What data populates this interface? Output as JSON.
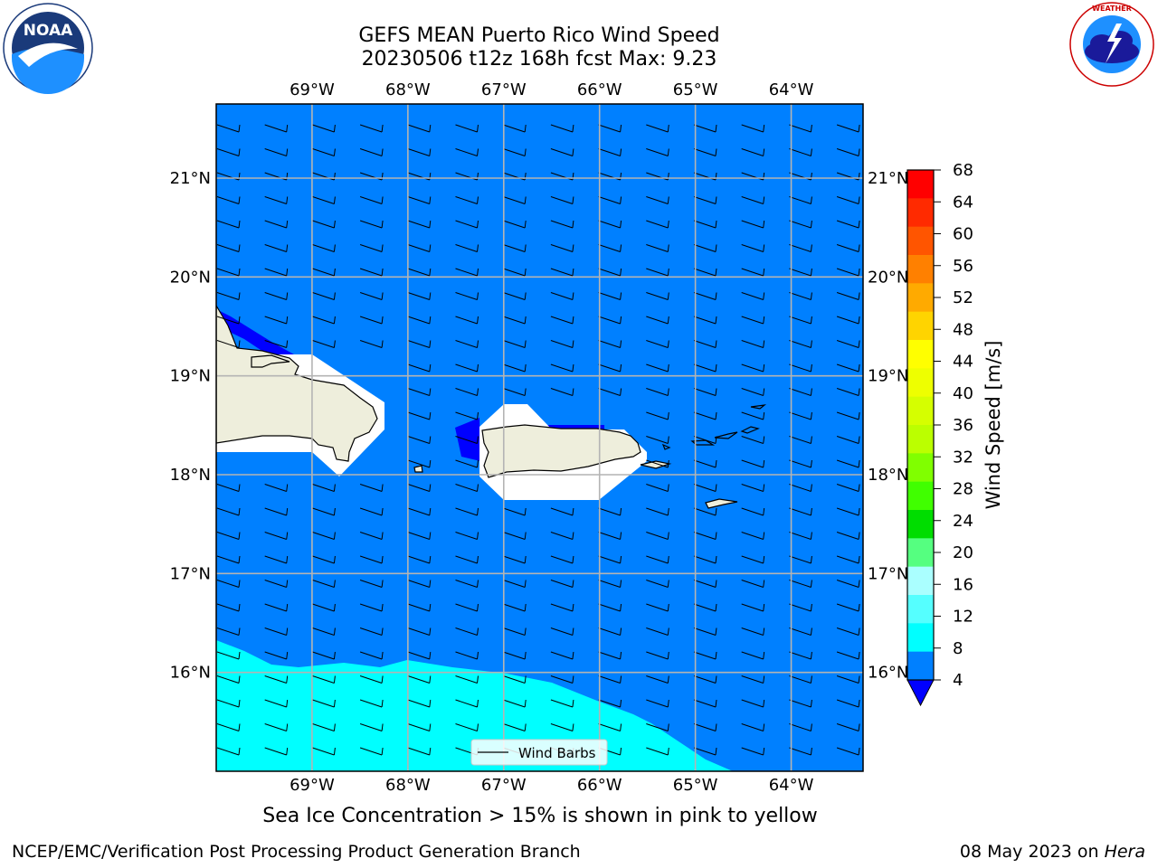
{
  "title": {
    "line1": "GEFS MEAN Puerto Rico Wind Speed",
    "line2": "20230506 t12z 168h fcst   Max: 9.23"
  },
  "subtitle": "Sea Ice Concentration > 15% is shown in pink to yellow",
  "footer": {
    "left": "NCEP/EMC/Verification Post Processing Product Generation Branch",
    "date": "08 May 2023 on ",
    "machine": "Hera"
  },
  "logos": {
    "noaa": {
      "text": "NOAA",
      "ring_text": "NATIONAL OCEANIC AND ATMOSPHERIC ADMINISTRATION · U.S. DEPARTMENT OF COMMERCE"
    },
    "nws": {
      "ring_text": "NATIONAL WEATHER SERVICE"
    }
  },
  "map": {
    "lon_range": [
      -70,
      -63.25
    ],
    "lat_range": [
      15,
      21.75
    ],
    "lon_ticks": [
      {
        "value": -69,
        "label": "69°W"
      },
      {
        "value": -68,
        "label": "68°W"
      },
      {
        "value": -67,
        "label": "67°W"
      },
      {
        "value": -66,
        "label": "66°W"
      },
      {
        "value": -65,
        "label": "65°W"
      },
      {
        "value": -64,
        "label": "64°W"
      }
    ],
    "lat_ticks": [
      {
        "value": 21,
        "label": "21°N"
      },
      {
        "value": 20,
        "label": "20°N"
      },
      {
        "value": 19,
        "label": "19°N"
      },
      {
        "value": 18,
        "label": "18°N"
      },
      {
        "value": 17,
        "label": "17°N"
      },
      {
        "value": 16,
        "label": "16°N"
      }
    ],
    "legend_label": "Wind Barbs",
    "land_color": "#eeeedc",
    "ocean_fill": "#0080ff",
    "high_wind_fill": "#00ffff",
    "low_wind_fill": "#0000ff",
    "grid": true
  },
  "colorbar": {
    "label": "Wind Speed [m/s]",
    "ticks": [
      "68",
      "64",
      "60",
      "56",
      "52",
      "48",
      "44",
      "40",
      "36",
      "32",
      "28",
      "24",
      "20",
      "16",
      "12",
      "8",
      "4"
    ],
    "colors": [
      "#ff0000",
      "#ff2a00",
      "#ff5500",
      "#ff8000",
      "#ffaa00",
      "#ffd400",
      "#ffff00",
      "#eeff00",
      "#d5ff00",
      "#bbff00",
      "#80ff00",
      "#40ff00",
      "#00dd00",
      "#55ff80",
      "#aaffff",
      "#55ffff",
      "#00ffff",
      "#0080ff"
    ],
    "under_color": "#0000ff"
  }
}
